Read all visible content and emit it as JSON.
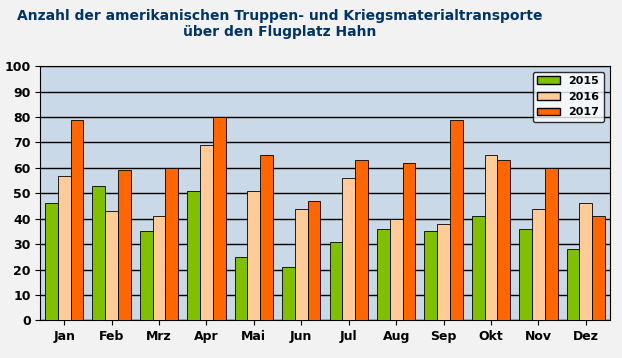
{
  "chart_data": {
    "type": "bar",
    "title": "Anzahl der amerikanischen Truppen- und Kriegsmaterialtransporte\nüber den Flugplatz Hahn",
    "categories": [
      "Jan",
      "Feb",
      "Mrz",
      "Apr",
      "Mai",
      "Jun",
      "Jul",
      "Aug",
      "Sep",
      "Okt",
      "Nov",
      "Dez"
    ],
    "series": [
      {
        "name": "2015",
        "color": "#80c000",
        "values": [
          46,
          53,
          35,
          51,
          25,
          21,
          31,
          36,
          35,
          41,
          36,
          28
        ]
      },
      {
        "name": "2016",
        "color": "#ffcc99",
        "values": [
          57,
          43,
          41,
          69,
          51,
          44,
          56,
          40,
          38,
          65,
          44,
          46
        ]
      },
      {
        "name": "2017",
        "color": "#ff6600",
        "values": [
          79,
          59,
          60,
          80,
          65,
          47,
          63,
          62,
          79,
          63,
          60,
          41
        ]
      }
    ],
    "ylim": [
      0,
      100
    ],
    "yticks": [
      0,
      10,
      20,
      30,
      40,
      50,
      60,
      70,
      80,
      90,
      100
    ],
    "grid": true,
    "legend": "upper right"
  }
}
